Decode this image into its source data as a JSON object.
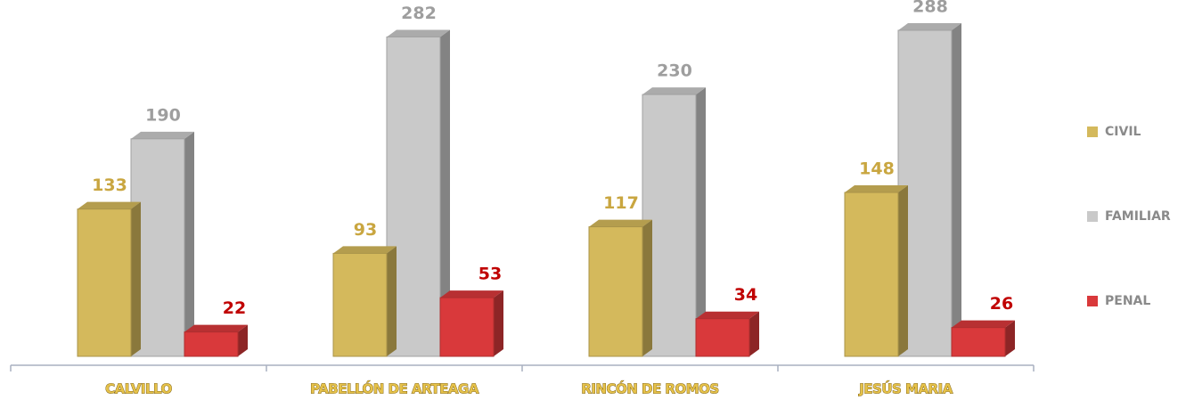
{
  "chart_data": {
    "type": "bar3d",
    "categories": [
      "CALVILLO",
      "PABELLÓN DE ARTEAGA",
      "RINCÓN DE ROMOS",
      "JESÚS MARIA"
    ],
    "series": [
      {
        "name": "CIVIL",
        "color": "#d4b95c",
        "label_color": "#c9a640",
        "values": [
          133,
          93,
          117,
          148
        ]
      },
      {
        "name": "FAMILIAR",
        "color": "#c9c9c9",
        "label_color": "#9e9e9e",
        "values": [
          190,
          282,
          230,
          288
        ]
      },
      {
        "name": "PENAL",
        "color": "#d9393b",
        "label_color": "#c00000",
        "values": [
          22,
          53,
          34,
          26
        ]
      }
    ],
    "legend": "right"
  }
}
